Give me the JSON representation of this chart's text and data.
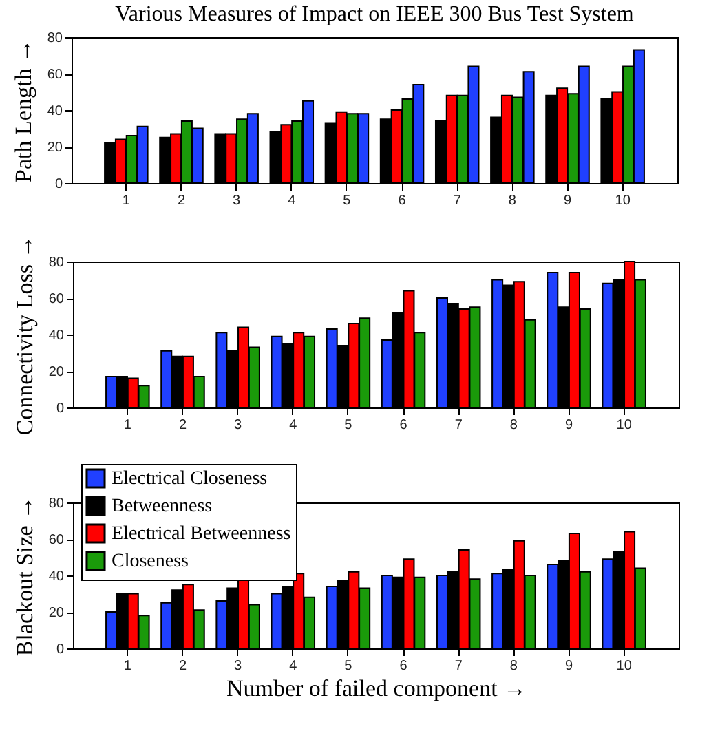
{
  "chart_data": [
    {
      "type": "bar",
      "title": "Various Measures of Impact on IEEE 300 Bus Test System",
      "ylabel": "Path Length →",
      "categories": [
        "1",
        "2",
        "3",
        "4",
        "5",
        "6",
        "7",
        "8",
        "9",
        "10"
      ],
      "ylim": [
        0,
        80
      ],
      "yticks": [
        0,
        20,
        40,
        60,
        80
      ],
      "series": [
        {
          "color": "#000000",
          "values": [
            22,
            25,
            27,
            28,
            33,
            35,
            34,
            36,
            48,
            46
          ]
        },
        {
          "color": "#ff0000",
          "values": [
            24,
            27,
            27,
            32,
            39,
            40,
            48,
            48,
            52,
            50
          ]
        },
        {
          "color": "#1a9a0a",
          "values": [
            26,
            34,
            35,
            34,
            38,
            46,
            48,
            47,
            49,
            64
          ]
        },
        {
          "color": "#2040ff",
          "values": [
            31,
            30,
            38,
            45,
            38,
            54,
            64,
            61,
            64,
            73
          ]
        }
      ]
    },
    {
      "type": "bar",
      "ylabel": "Connectivity Loss →",
      "categories": [
        "1",
        "2",
        "3",
        "4",
        "5",
        "6",
        "7",
        "8",
        "9",
        "10"
      ],
      "ylim": [
        0,
        80
      ],
      "yticks": [
        0,
        20,
        40,
        60,
        80
      ],
      "series": [
        {
          "color": "#2040ff",
          "values": [
            17,
            31,
            41,
            39,
            43,
            37,
            60,
            70,
            74,
            68
          ]
        },
        {
          "color": "#000000",
          "values": [
            17,
            28,
            31,
            35,
            34,
            52,
            57,
            67,
            55,
            70
          ]
        },
        {
          "color": "#ff0000",
          "values": [
            16,
            28,
            44,
            41,
            46,
            64,
            54,
            69,
            74,
            80
          ]
        },
        {
          "color": "#1a9a0a",
          "values": [
            12,
            17,
            33,
            39,
            49,
            41,
            55,
            48,
            54,
            70
          ]
        }
      ]
    },
    {
      "type": "bar",
      "xlabel": "Number of failed component →",
      "ylabel": "Blackout Size →",
      "categories": [
        "1",
        "2",
        "3",
        "4",
        "5",
        "6",
        "7",
        "8",
        "9",
        "10"
      ],
      "ylim": [
        0,
        80
      ],
      "yticks": [
        0,
        20,
        40,
        60,
        80
      ],
      "legend": "top left",
      "series": [
        {
          "name": "Electrical Closeness",
          "color": "#2040ff",
          "values": [
            20,
            25,
            26,
            30,
            34,
            40,
            40,
            41,
            46,
            49
          ]
        },
        {
          "name": "Betweenness",
          "color": "#000000",
          "values": [
            30,
            32,
            33,
            34,
            37,
            39,
            42,
            43,
            48,
            53
          ]
        },
        {
          "name": "Electrical Betweenness",
          "color": "#ff0000",
          "values": [
            30,
            35,
            38,
            41,
            42,
            49,
            54,
            59,
            63,
            64
          ]
        },
        {
          "name": "Closeness",
          "color": "#1a9a0a",
          "values": [
            18,
            21,
            24,
            28,
            33,
            39,
            38,
            40,
            42,
            44
          ]
        }
      ]
    }
  ]
}
